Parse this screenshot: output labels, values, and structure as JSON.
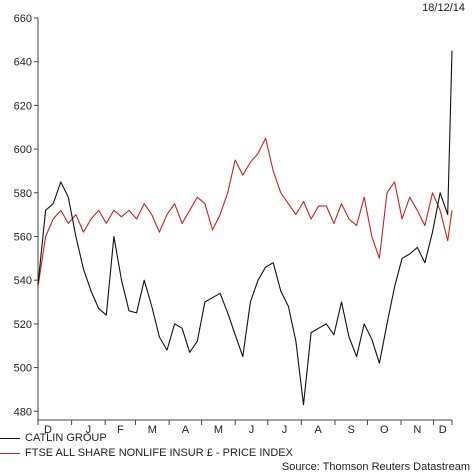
{
  "header": {
    "date": "18/12/14"
  },
  "source": "Source: Thomson Reuters Datastream",
  "colors": {
    "series1": "#111111",
    "series2": "#cc2222",
    "axis": "#444444"
  },
  "chart_data": {
    "type": "line",
    "ylim": [
      476,
      660
    ],
    "yticks": [
      480,
      500,
      520,
      540,
      560,
      580,
      600,
      620,
      640,
      660
    ],
    "grid": false,
    "legend_position": "bottom-left",
    "x_tick_labels": [
      "D",
      "J",
      "F",
      "M",
      "A",
      "M",
      "J",
      "J",
      "A",
      "S",
      "O",
      "N",
      "D"
    ],
    "x": [
      "2013-12-01",
      "2013-12-08",
      "2013-12-15",
      "2013-12-22",
      "2013-12-29",
      "2014-01-05",
      "2014-01-12",
      "2014-01-19",
      "2014-01-26",
      "2014-02-02",
      "2014-02-09",
      "2014-02-16",
      "2014-02-23",
      "2014-03-02",
      "2014-03-09",
      "2014-03-16",
      "2014-03-23",
      "2014-03-30",
      "2014-04-06",
      "2014-04-13",
      "2014-04-20",
      "2014-04-27",
      "2014-05-04",
      "2014-05-11",
      "2014-05-18",
      "2014-05-25",
      "2014-06-01",
      "2014-06-08",
      "2014-06-15",
      "2014-06-22",
      "2014-06-29",
      "2014-07-06",
      "2014-07-13",
      "2014-07-20",
      "2014-07-27",
      "2014-08-03",
      "2014-08-10",
      "2014-08-17",
      "2014-08-24",
      "2014-08-31",
      "2014-09-07",
      "2014-09-14",
      "2014-09-21",
      "2014-09-28",
      "2014-10-05",
      "2014-10-12",
      "2014-10-19",
      "2014-10-26",
      "2014-11-02",
      "2014-11-09",
      "2014-11-16",
      "2014-11-23",
      "2014-11-30",
      "2014-12-07",
      "2014-12-14",
      "2014-12-18"
    ],
    "series": [
      {
        "name": "CATLIN GROUP",
        "values": [
          538,
          572,
          575,
          585,
          578,
          560,
          545,
          535,
          527,
          524,
          560,
          540,
          526,
          525,
          540,
          528,
          514,
          508,
          520,
          518,
          507,
          512,
          530,
          532,
          534,
          525,
          515,
          505,
          530,
          540,
          546,
          548,
          535,
          528,
          512,
          483,
          516,
          518,
          520,
          515,
          530,
          514,
          505,
          520,
          513,
          502,
          520,
          537,
          550,
          552,
          555,
          548,
          562,
          580,
          570,
          645
        ]
      },
      {
        "name": "FTSE ALL SHARE NONLIFE INSUR £ - PRICE INDEX",
        "values": [
          537,
          560,
          568,
          572,
          566,
          570,
          562,
          568,
          572,
          566,
          572,
          569,
          572,
          568,
          575,
          570,
          562,
          570,
          575,
          566,
          572,
          578,
          575,
          563,
          570,
          580,
          595,
          588,
          594,
          598,
          605,
          590,
          580,
          575,
          570,
          576,
          568,
          574,
          574,
          566,
          575,
          568,
          565,
          578,
          560,
          550,
          580,
          585,
          568,
          578,
          572,
          565,
          580,
          572,
          558,
          572
        ]
      }
    ]
  }
}
